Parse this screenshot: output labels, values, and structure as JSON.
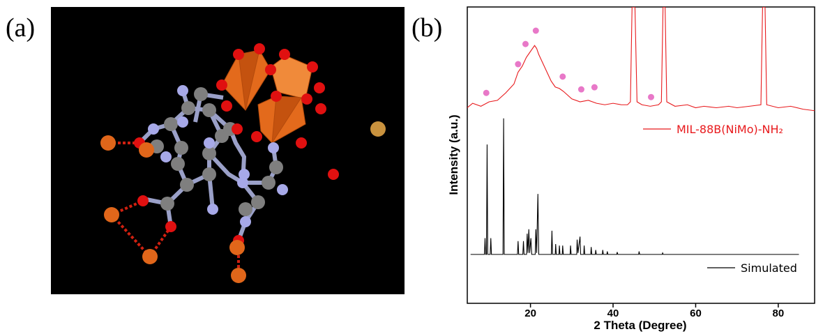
{
  "panel_a": {
    "label": "(a)"
  },
  "chart_data": {
    "type": "line",
    "panel_label": "(b)",
    "x_label": "2 Theta (Degree)",
    "y_label": "Intensity (a.u.)",
    "xlim": [
      4.7,
      88.8
    ],
    "ylim": [
      0,
      100
    ],
    "xticks": [
      20,
      40,
      60,
      80
    ],
    "series": [
      {
        "name": "MIL-88B(NiMo)-NH₂",
        "color": "#e8191c",
        "mode": "line",
        "x": [
          4.7,
          6,
          8,
          10,
          12,
          14,
          16,
          17,
          18,
          19,
          20,
          21,
          21.5,
          22,
          23,
          24,
          25,
          26,
          27,
          28,
          30,
          32,
          34,
          36,
          38,
          40,
          42,
          43.5,
          44.2,
          44.6,
          45.3,
          45.8,
          47,
          49,
          51,
          51.7,
          52.1,
          52.6,
          53,
          55,
          58,
          60,
          62,
          65,
          68,
          70,
          73,
          75.8,
          76.2,
          76.8,
          77.2,
          80,
          83,
          86,
          88.8
        ],
        "values": [
          66,
          67.5,
          66.5,
          68,
          68.5,
          71,
          74,
          78,
          80,
          83,
          85,
          87,
          86,
          84,
          81,
          78,
          75,
          73,
          72.5,
          71.5,
          69,
          68,
          68.5,
          67.5,
          67,
          67.5,
          67,
          67,
          68,
          100,
          100,
          68,
          67,
          66.5,
          67,
          68,
          100,
          100,
          68,
          66.5,
          67,
          66,
          66.5,
          66,
          66.5,
          66,
          66.5,
          67,
          100,
          100,
          67,
          66,
          66.5,
          65.5,
          65
        ]
      },
      {
        "name": "Simulated",
        "color": "#000000",
        "mode": "line",
        "x": [
          5.5,
          8.85,
          9.0,
          9.15,
          9.35,
          9.5,
          9.65,
          10.25,
          10.4,
          10.55,
          13.35,
          13.5,
          13.65,
          16.85,
          17.0,
          17.15,
          18.15,
          18.3,
          18.45,
          19.05,
          19.2,
          19.4,
          19.6,
          19.8,
          20.1,
          20.3,
          21.15,
          21.3,
          21.5,
          21.8,
          22.0,
          25.05,
          25.2,
          25.35,
          26.0,
          26.1,
          26.25,
          26.9,
          27.0,
          27.15,
          27.7,
          27.8,
          27.95,
          29.6,
          29.7,
          29.85,
          31.2,
          31.3,
          31.5,
          32.0,
          32.15,
          32.9,
          33.0,
          33.15,
          34.6,
          34.7,
          34.85,
          35.7,
          35.8,
          35.95,
          37.4,
          37.5,
          37.65,
          38.5,
          38.6,
          38.75,
          40.9,
          41.0,
          41.15,
          46.2,
          46.3,
          46.45,
          51.9,
          52.0,
          52.15,
          85
        ],
        "values": [
          16.5,
          16.5,
          22,
          16.5,
          16.5,
          53.6,
          16.5,
          16.5,
          22,
          16.5,
          16.5,
          62.4,
          16.5,
          16.5,
          21,
          16.5,
          16.5,
          21,
          16.5,
          16.5,
          23.5,
          17,
          25,
          17,
          22,
          16.5,
          16.5,
          25,
          17,
          36.9,
          16.5,
          16.5,
          24.5,
          16.5,
          16.5,
          20,
          16.5,
          16.5,
          19.5,
          16.5,
          16.5,
          19.5,
          16.5,
          16.5,
          19.5,
          16.5,
          16.5,
          21.5,
          17,
          22.5,
          16.5,
          16.5,
          19.5,
          16.5,
          16.5,
          19,
          16.5,
          16.5,
          18,
          16.5,
          16.5,
          18,
          16.5,
          16.5,
          17.5,
          16.5,
          16.5,
          17.3,
          16.5,
          16.5,
          17.5,
          16.5,
          16.5,
          17,
          16.5,
          16.5
        ]
      },
      {
        "color": "#e878c8",
        "mode": "markers",
        "x": [
          9.3,
          17,
          18.8,
          21.3,
          27.8,
          32.3,
          35.5,
          49.2
        ],
        "values": [
          71,
          80.7,
          87.5,
          92,
          76.5,
          72.2,
          72.9,
          69.6
        ]
      }
    ]
  }
}
